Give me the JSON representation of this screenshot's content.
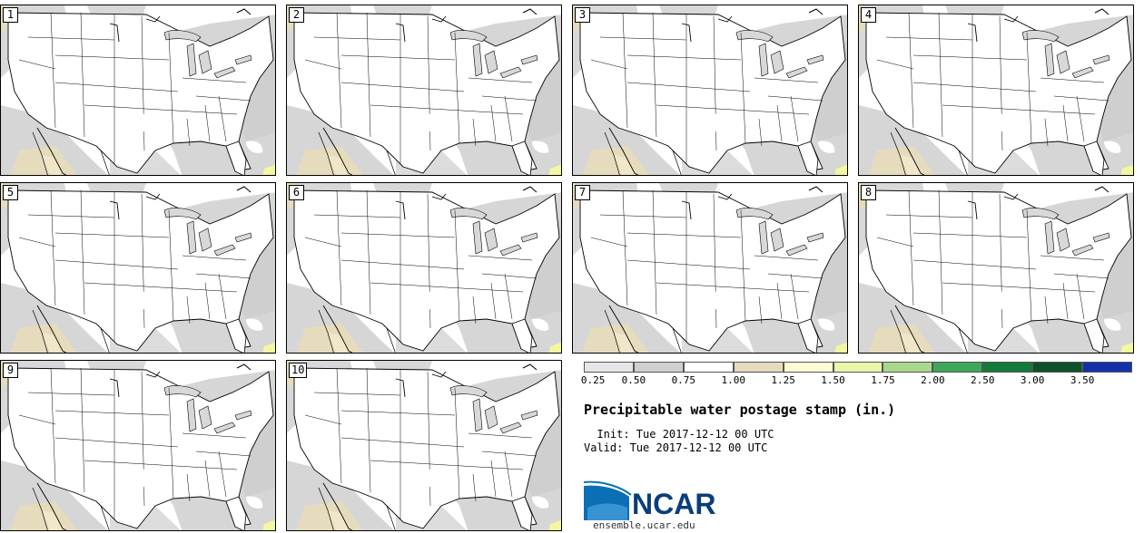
{
  "panels": [
    {
      "label": "1"
    },
    {
      "label": "2"
    },
    {
      "label": "3"
    },
    {
      "label": "4"
    },
    {
      "label": "5"
    },
    {
      "label": "6"
    },
    {
      "label": "7"
    },
    {
      "label": "8"
    },
    {
      "label": "9"
    },
    {
      "label": "10"
    }
  ],
  "legend": {
    "ticks": [
      "0.25",
      "0.50",
      "0.75",
      "1.00",
      "1.25",
      "1.50",
      "1.75",
      "2.00",
      "2.50",
      "3.00",
      "3.50"
    ],
    "colors": [
      "#e6e6e6",
      "#cfcfd0",
      "#ffffff",
      "#e6dcbd",
      "#fbfbd6",
      "#e9f7a9",
      "#a9d88c",
      "#3ea75a",
      "#127a3a",
      "#0c5228",
      "#1430a8"
    ]
  },
  "title": "Precipitable water postage stamp (in.)",
  "init_line": "  Init: Tue 2017-12-12 00 UTC",
  "valid_line": "Valid: Tue 2017-12-12 00 UTC",
  "logo": {
    "text": "NCAR",
    "url": "ensemble.ucar.edu",
    "color": "#0a3e7a"
  }
}
